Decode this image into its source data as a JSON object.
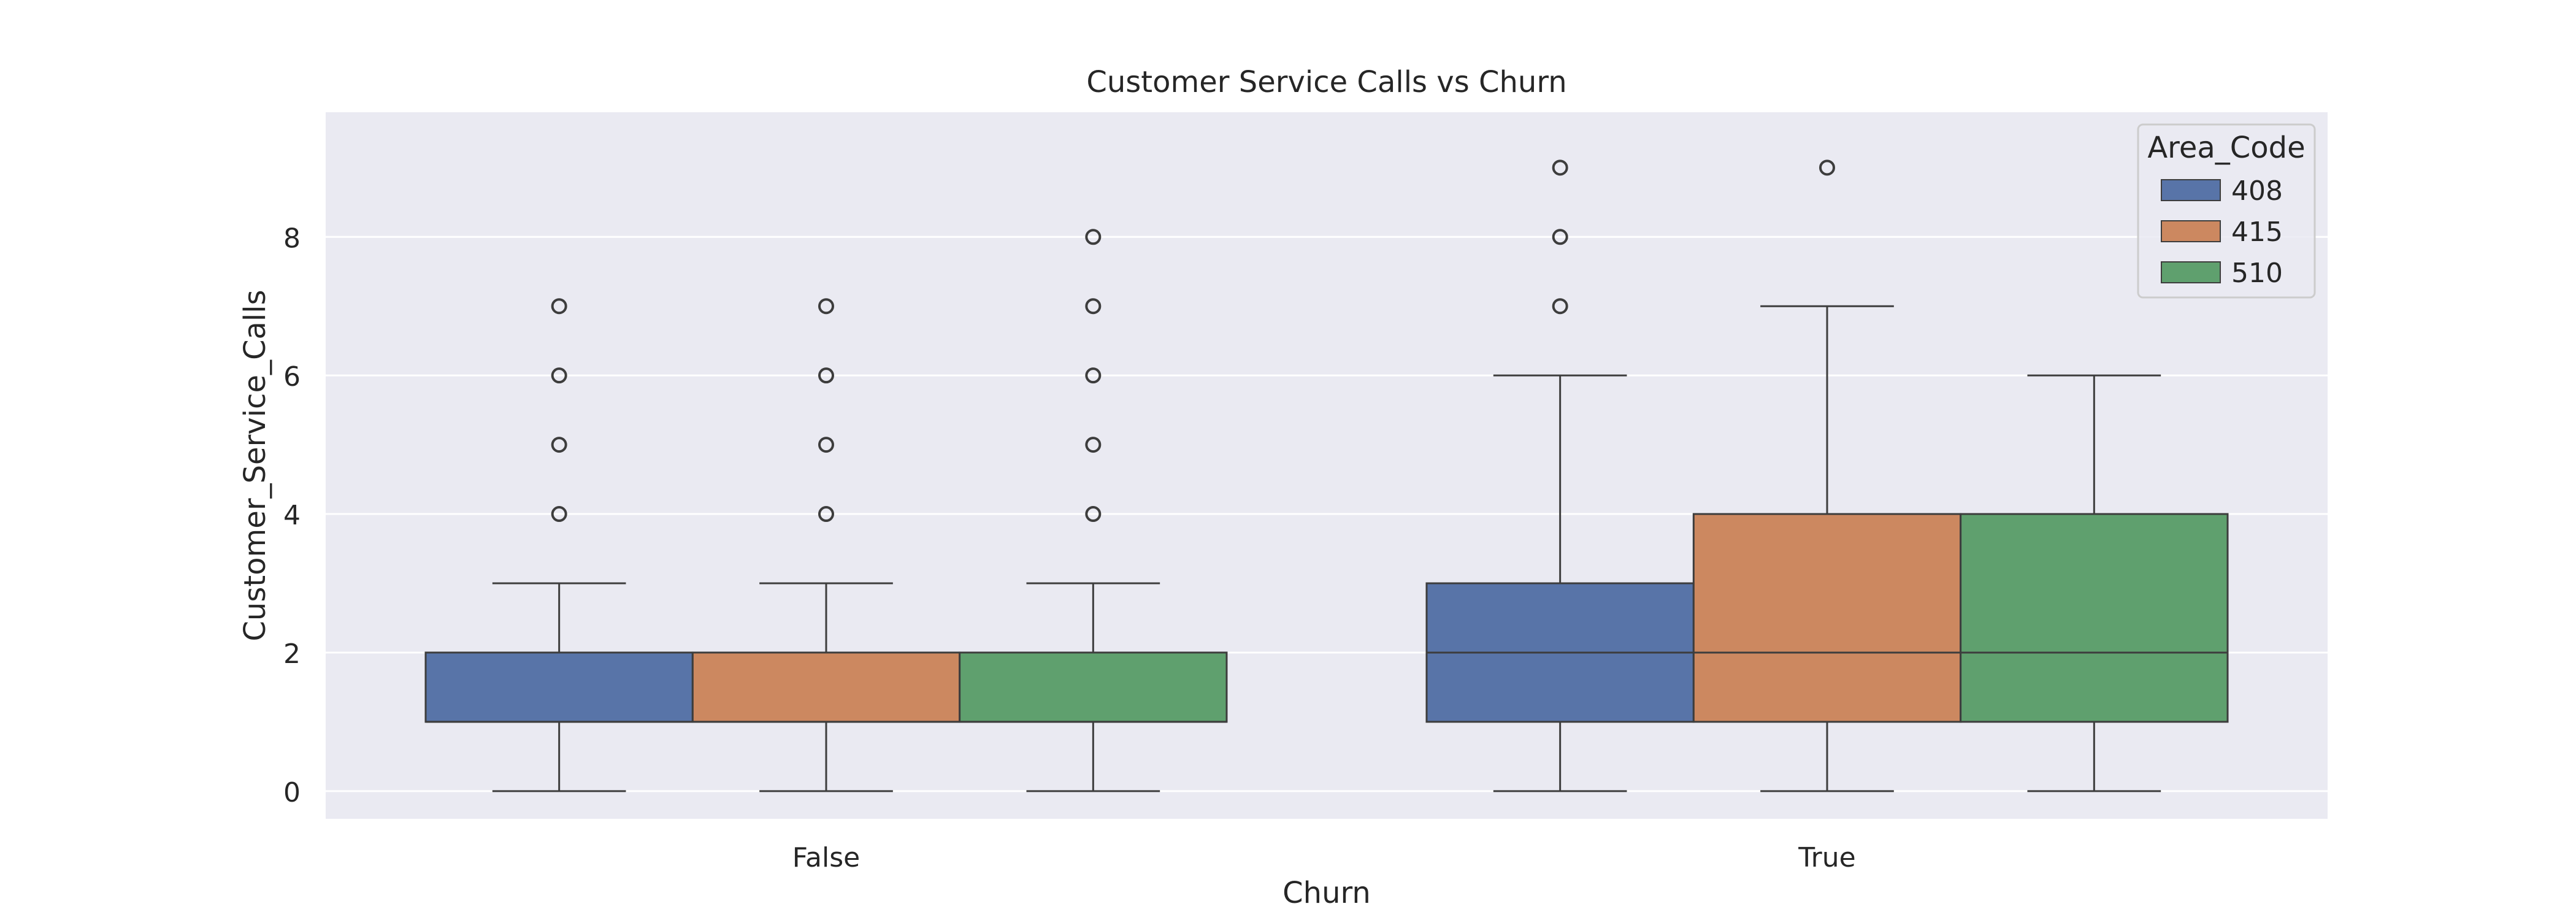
{
  "chart_data": {
    "type": "boxplot",
    "title": "Customer Service Calls vs Churn",
    "xlabel": "Churn",
    "ylabel": "Customer_Service_Calls",
    "categories": [
      "False",
      "True"
    ],
    "ylim": [
      -0.4,
      9.8
    ],
    "yticks": [
      0,
      2,
      4,
      6,
      8
    ],
    "grid": true,
    "legend": {
      "title": "Area_Code",
      "placement": "top-right"
    },
    "series": [
      {
        "name": "408",
        "color": "#5874a8",
        "boxes": [
          {
            "category": "False",
            "whisker_low": 0,
            "q1": 1,
            "median": 1,
            "q3": 2,
            "whisker_high": 3,
            "outliers": [
              4,
              5,
              6,
              7
            ]
          },
          {
            "category": "True",
            "whisker_low": 0,
            "q1": 1,
            "median": 2,
            "q3": 3,
            "whisker_high": 6,
            "outliers": [
              7,
              8,
              9
            ]
          }
        ]
      },
      {
        "name": "415",
        "color": "#cc8860",
        "boxes": [
          {
            "category": "False",
            "whisker_low": 0,
            "q1": 1,
            "median": 1,
            "q3": 2,
            "whisker_high": 3,
            "outliers": [
              4,
              5,
              6,
              7
            ]
          },
          {
            "category": "True",
            "whisker_low": 0,
            "q1": 1,
            "median": 2,
            "q3": 4,
            "whisker_high": 7,
            "outliers": [
              9
            ]
          }
        ]
      },
      {
        "name": "510",
        "color": "#5fa06e",
        "boxes": [
          {
            "category": "False",
            "whisker_low": 0,
            "q1": 1,
            "median": 1,
            "q3": 2,
            "whisker_high": 3,
            "outliers": [
              4,
              5,
              6,
              7,
              8
            ]
          },
          {
            "category": "True",
            "whisker_low": 0,
            "q1": 1,
            "median": 2,
            "q3": 4,
            "whisker_high": 6,
            "outliers": []
          }
        ]
      }
    ]
  }
}
